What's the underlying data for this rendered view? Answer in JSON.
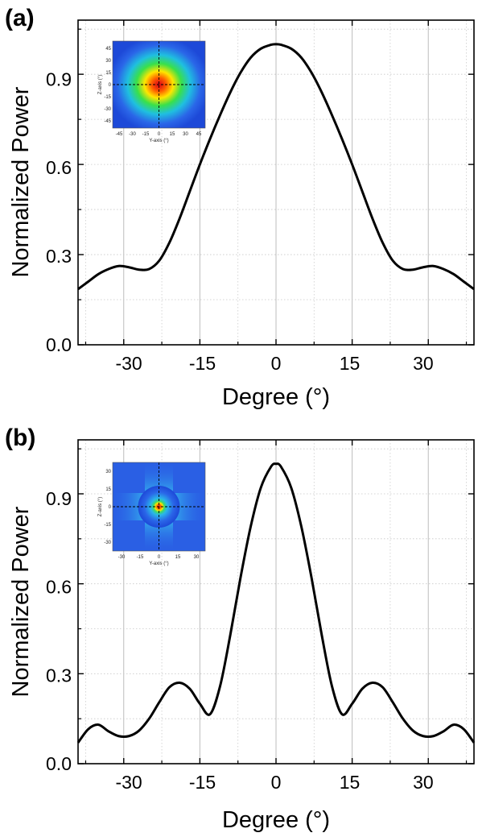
{
  "chart_data": [
    {
      "panel": "(a)",
      "type": "line",
      "xlabel": "Degree (°)",
      "ylabel": "Normalized Power",
      "xlim": [
        -39,
        39
      ],
      "ylim": [
        0.0,
        1.08
      ],
      "xticks": [
        -30,
        -15,
        0,
        15,
        30
      ],
      "xtick_labels": [
        "-30",
        "-15",
        "0",
        "15",
        "30"
      ],
      "yticks": [
        0.0,
        0.3,
        0.6,
        0.9
      ],
      "ytick_labels": [
        "0.0",
        "0.3",
        "0.6",
        "0.9"
      ],
      "grid": true,
      "series": [
        {
          "color": "#000000",
          "x": [
            -39,
            -37,
            -35,
            -33,
            -31,
            -29,
            -27,
            -25,
            -23,
            -21,
            -19,
            -17,
            -15,
            -13,
            -11,
            -9,
            -7,
            -5,
            -3,
            -1,
            0,
            1,
            3,
            5,
            7,
            9,
            11,
            13,
            15,
            17,
            19,
            21,
            23,
            25,
            27,
            29,
            31,
            33,
            35,
            37,
            39
          ],
          "y": [
            0.185,
            0.21,
            0.235,
            0.252,
            0.262,
            0.258,
            0.25,
            0.252,
            0.28,
            0.34,
            0.42,
            0.51,
            0.6,
            0.685,
            0.765,
            0.84,
            0.905,
            0.955,
            0.985,
            0.998,
            1.0,
            0.998,
            0.985,
            0.955,
            0.905,
            0.84,
            0.765,
            0.685,
            0.6,
            0.51,
            0.42,
            0.34,
            0.28,
            0.252,
            0.25,
            0.258,
            0.262,
            0.252,
            0.235,
            0.21,
            0.185
          ]
        }
      ],
      "inset": {
        "xlabel": "Y-axis (°)",
        "ylabel": "Z-axis (°)",
        "xtick_labels": [
          "-45",
          "-30",
          "-15",
          "0",
          "15",
          "30",
          "45"
        ],
        "ytick_labels": [
          "45",
          "30",
          "15",
          "0",
          "-15",
          "-30",
          "-45"
        ]
      }
    },
    {
      "panel": "(b)",
      "type": "line",
      "xlabel": "Degree (°)",
      "ylabel": "Normalized Power",
      "xlim": [
        -39,
        39
      ],
      "ylim": [
        0.0,
        1.08
      ],
      "xticks": [
        -30,
        -15,
        0,
        15,
        30
      ],
      "xtick_labels": [
        "-30",
        "-15",
        "0",
        "15",
        "30"
      ],
      "yticks": [
        0.0,
        0.3,
        0.6,
        0.9
      ],
      "ytick_labels": [
        "0.0",
        "0.3",
        "0.6",
        "0.9"
      ],
      "grid": true,
      "series": [
        {
          "color": "#000000",
          "x": [
            -39,
            -37,
            -35,
            -33,
            -31,
            -29,
            -27,
            -25,
            -23,
            -21,
            -19,
            -17,
            -15,
            -13,
            -11,
            -9,
            -7,
            -5,
            -3,
            -1,
            0,
            1,
            3,
            5,
            7,
            9,
            11,
            13,
            15,
            17,
            19,
            21,
            23,
            25,
            27,
            29,
            31,
            33,
            35,
            37,
            39
          ],
          "y": [
            0.07,
            0.115,
            0.13,
            0.108,
            0.092,
            0.092,
            0.11,
            0.15,
            0.205,
            0.255,
            0.27,
            0.25,
            0.2,
            0.165,
            0.26,
            0.43,
            0.62,
            0.79,
            0.92,
            0.99,
            1.0,
            0.99,
            0.92,
            0.79,
            0.62,
            0.43,
            0.26,
            0.165,
            0.2,
            0.25,
            0.27,
            0.255,
            0.205,
            0.15,
            0.11,
            0.092,
            0.092,
            0.108,
            0.13,
            0.115,
            0.07
          ]
        }
      ],
      "inset": {
        "xlabel": "Y-axis (°)",
        "ylabel": "Z-axis (°)",
        "xtick_labels": [
          "-30",
          "-15",
          "0",
          "15",
          "30"
        ],
        "ytick_labels": [
          "30",
          "15",
          "0",
          "-15",
          "-30"
        ]
      }
    }
  ]
}
